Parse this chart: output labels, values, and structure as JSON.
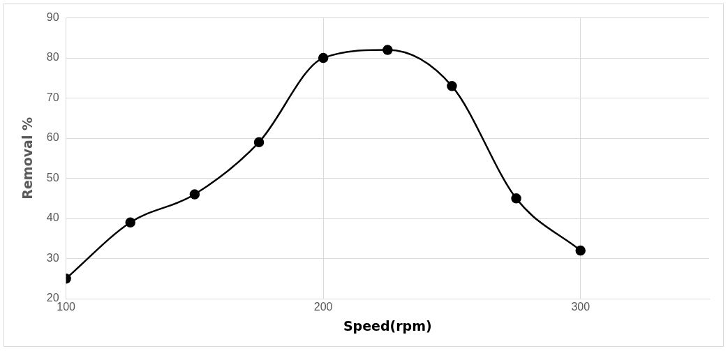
{
  "chart_data": {
    "type": "line",
    "xlabel": "Speed(rpm)",
    "ylabel": "Removal %",
    "x": [
      100,
      125,
      150,
      175,
      200,
      225,
      250,
      275,
      300
    ],
    "series": [
      {
        "color": "#000000",
        "values": [
          25,
          39,
          46,
          59,
          80,
          82,
          73,
          45,
          32
        ]
      }
    ],
    "xlim": [
      100,
      350
    ],
    "xticks": [
      100,
      200,
      300
    ],
    "ylim": [
      20,
      90
    ],
    "yticks": [
      20,
      30,
      40,
      50,
      60,
      70,
      80,
      90
    ],
    "grid": true,
    "legend": false,
    "marker": "circle",
    "line_style": "solid"
  }
}
